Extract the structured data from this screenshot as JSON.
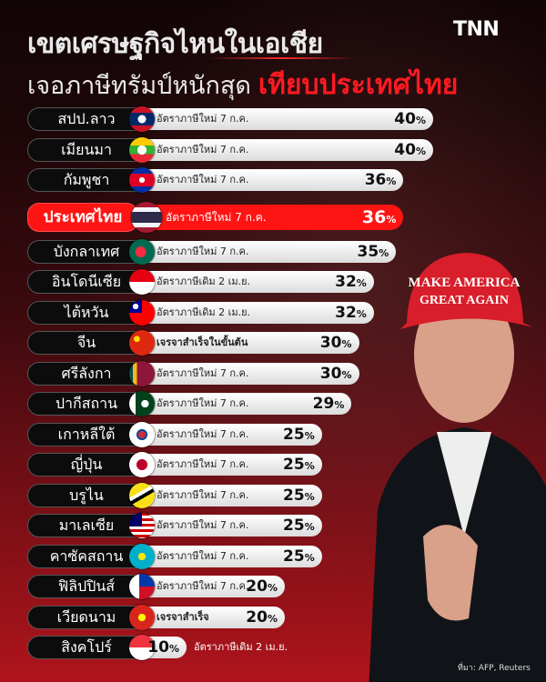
{
  "header": {
    "title_line1": "เขตเศรษฐกิจไหนในเอเชีย",
    "title_line2": "เจอภาษีทรัมป์หนักสุด",
    "title_highlight": "เทียบประเทศไทย",
    "logo": "TNN"
  },
  "colors": {
    "accent": "#ff1414",
    "background_top": "#120507",
    "background_bottom": "#b0141c"
  },
  "rows": [
    {
      "name": "สปป.ลาว",
      "flag": "laos-flag-icon",
      "note": "อัตราภาษีใหม่ 7 ก.ค.",
      "value": 40
    },
    {
      "name": "เมียนมา",
      "flag": "myanmar-flag-icon",
      "note": "อัตราภาษีใหม่ 7 ก.ค.",
      "value": 40
    },
    {
      "name": "กัมพูชา",
      "flag": "cambodia-flag-icon",
      "note": "อัตราภาษีใหม่ 7 ก.ค.",
      "value": 36
    },
    {
      "name": "ประเทศไทย",
      "flag": "thailand-flag-icon",
      "note": "อัตราภาษีใหม่ 7 ก.ค.",
      "value": 36,
      "highlight": true
    },
    {
      "name": "บังกลาเทศ",
      "flag": "bangladesh-flag-icon",
      "note": "อัตราภาษีใหม่ 7 ก.ค.",
      "value": 35
    },
    {
      "name": "อินโดนีเซีย",
      "flag": "indonesia-flag-icon",
      "note": "อัตราภาษีเดิม 2 เม.ย.",
      "value": 32
    },
    {
      "name": "ไต้หวัน",
      "flag": "taiwan-flag-icon",
      "note": "อัตราภาษีเดิม 2 เม.ย.",
      "value": 32
    },
    {
      "name": "จีน",
      "flag": "china-flag-icon",
      "note": "เจรจาสำเร็จในขั้นต้น",
      "value": 30,
      "bold_note": true
    },
    {
      "name": "ศรีลังกา",
      "flag": "srilanka-flag-icon",
      "note": "อัตราภาษีใหม่ 7 ก.ค.",
      "value": 30
    },
    {
      "name": "ปากีสถาน",
      "flag": "pakistan-flag-icon",
      "note": "อัตราภาษีใหม่ 7 ก.ค.",
      "value": 29
    },
    {
      "name": "เกาหลีใต้",
      "flag": "south-korea-flag-icon",
      "note": "อัตราภาษีใหม่ 7 ก.ค.",
      "value": 25
    },
    {
      "name": "ญี่ปุ่น",
      "flag": "japan-flag-icon",
      "note": "อัตราภาษีใหม่ 7 ก.ค.",
      "value": 25
    },
    {
      "name": "บรูไน",
      "flag": "brunei-flag-icon",
      "note": "อัตราภาษีใหม่ 7 ก.ค.",
      "value": 25
    },
    {
      "name": "มาเลเซีย",
      "flag": "malaysia-flag-icon",
      "note": "อัตราภาษีใหม่ 7 ก.ค.",
      "value": 25
    },
    {
      "name": "คาซัคสถาน",
      "flag": "kazakhstan-flag-icon",
      "note": "อัตราภาษีใหม่ 7 ก.ค.",
      "value": 25
    },
    {
      "name": "ฟิลิปปินส์",
      "flag": "philippines-flag-icon",
      "note": "อัตราภาษีใหม่ 7 ก.ค.",
      "value": 20
    },
    {
      "name": "เวียดนาม",
      "flag": "vietnam-flag-icon",
      "note": "เจรจาสำเร็จ",
      "value": 20,
      "bold_note": true
    },
    {
      "name": "สิงคโปร์",
      "flag": "singapore-flag-icon",
      "note": "อัตราภาษีเดิม 2 เม.ย.",
      "value": 10,
      "note_outside": true
    }
  ],
  "unit": "%",
  "photo": {
    "cap_text_1": "MAKE AMERICA",
    "cap_text_2": "GREAT AGAIN"
  },
  "source": "ที่มา: AFP, Reuters"
}
